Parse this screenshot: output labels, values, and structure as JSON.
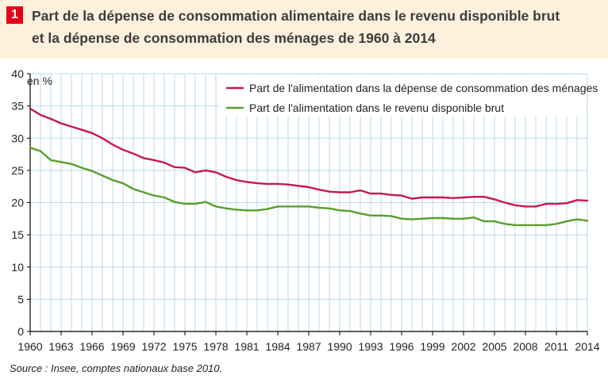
{
  "figure": {
    "number": "1",
    "title_line1": "Part de la dépense de consommation alimentaire dans le revenu disponible brut",
    "title_line2": "et la dépense de consommation des ménages de 1960 à 2014",
    "source": "Source : Insee, comptes nationaux base 2010."
  },
  "colors": {
    "series_menages": "#c8174f",
    "series_revenu": "#5a9e2a",
    "grid": "#b9dbe9",
    "title_band": "#fdf0dc",
    "badge": "#e2001a"
  },
  "chart_data": {
    "type": "line",
    "title": "Part de la dépense de consommation alimentaire dans le revenu disponible brut et la dépense de consommation des ménages de 1960 à 2014",
    "ylabel": "en %",
    "xlabel": "",
    "xlim": [
      1960,
      2014
    ],
    "ylim": [
      0,
      40
    ],
    "grid": true,
    "legend_position": "top-right",
    "x": [
      1960,
      1961,
      1962,
      1963,
      1964,
      1965,
      1966,
      1967,
      1968,
      1969,
      1970,
      1971,
      1972,
      1973,
      1974,
      1975,
      1976,
      1977,
      1978,
      1979,
      1980,
      1981,
      1982,
      1983,
      1984,
      1985,
      1986,
      1987,
      1988,
      1989,
      1990,
      1991,
      1992,
      1993,
      1994,
      1995,
      1996,
      1997,
      1998,
      1999,
      2000,
      2001,
      2002,
      2003,
      2004,
      2005,
      2006,
      2007,
      2008,
      2009,
      2010,
      2011,
      2012,
      2013,
      2014
    ],
    "x_ticks": [
      "1960",
      "1963",
      "1966",
      "1969",
      "1972",
      "1975",
      "1978",
      "1981",
      "1984",
      "1987",
      "1990",
      "1993",
      "1996",
      "1999",
      "2002",
      "2005",
      "2008",
      "2011",
      "2014"
    ],
    "y_ticks": [
      "0",
      "5",
      "10",
      "15",
      "20",
      "25",
      "30",
      "35",
      "40"
    ],
    "series": [
      {
        "name": "Part de l'alimentation dans la dépense de consommation des ménages",
        "values": [
          34.6,
          33.6,
          33.0,
          32.3,
          31.8,
          31.3,
          30.8,
          30.0,
          29.0,
          28.2,
          27.6,
          26.9,
          26.6,
          26.2,
          25.5,
          25.4,
          24.7,
          25.0,
          24.7,
          24.0,
          23.5,
          23.2,
          23.0,
          22.9,
          22.9,
          22.8,
          22.6,
          22.4,
          22.0,
          21.7,
          21.6,
          21.6,
          21.9,
          21.4,
          21.4,
          21.2,
          21.1,
          20.6,
          20.8,
          20.8,
          20.8,
          20.7,
          20.8,
          20.9,
          20.9,
          20.5,
          20.0,
          19.6,
          19.4,
          19.4,
          19.8,
          19.8,
          19.9,
          20.4,
          20.3
        ]
      },
      {
        "name": "Part de l'alimentation dans le revenu disponible brut",
        "values": [
          28.5,
          28.0,
          26.6,
          26.3,
          26.0,
          25.4,
          24.9,
          24.2,
          23.5,
          23.0,
          22.1,
          21.6,
          21.1,
          20.8,
          20.1,
          19.8,
          19.8,
          20.1,
          19.4,
          19.1,
          18.9,
          18.8,
          18.8,
          19.0,
          19.4,
          19.4,
          19.4,
          19.4,
          19.2,
          19.1,
          18.8,
          18.7,
          18.3,
          18.0,
          18.0,
          17.9,
          17.5,
          17.4,
          17.5,
          17.6,
          17.6,
          17.5,
          17.5,
          17.7,
          17.1,
          17.1,
          16.7,
          16.5,
          16.5,
          16.5,
          16.5,
          16.7,
          17.1,
          17.4,
          17.2
        ]
      }
    ]
  }
}
